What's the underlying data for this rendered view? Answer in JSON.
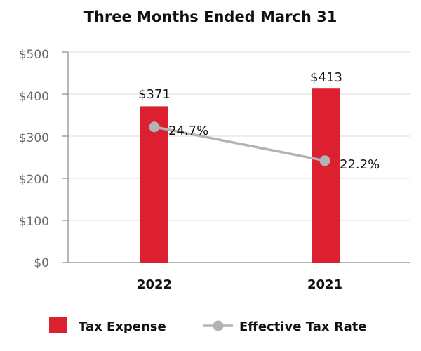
{
  "chart_data": {
    "type": "bar+line",
    "title": "Three Months Ended March 31",
    "categories": [
      "2022",
      "2021"
    ],
    "y_ticks": [
      "$0",
      "$100",
      "$200",
      "$300",
      "$400",
      "$500"
    ],
    "ylim": [
      0,
      500
    ],
    "grid": true,
    "legend_position": "bottom",
    "series": [
      {
        "name": "Tax Expense",
        "kind": "bar",
        "color": "#dc2030",
        "values": [
          371,
          413
        ],
        "labels": [
          "$371",
          "$413"
        ]
      },
      {
        "name": "Effective Tax Rate",
        "kind": "line",
        "color": "#b3b3b3",
        "values": [
          24.7,
          22.2
        ],
        "plotted_at": [
          322,
          242
        ],
        "labels": [
          "24.7%",
          "22.2%"
        ]
      }
    ]
  }
}
